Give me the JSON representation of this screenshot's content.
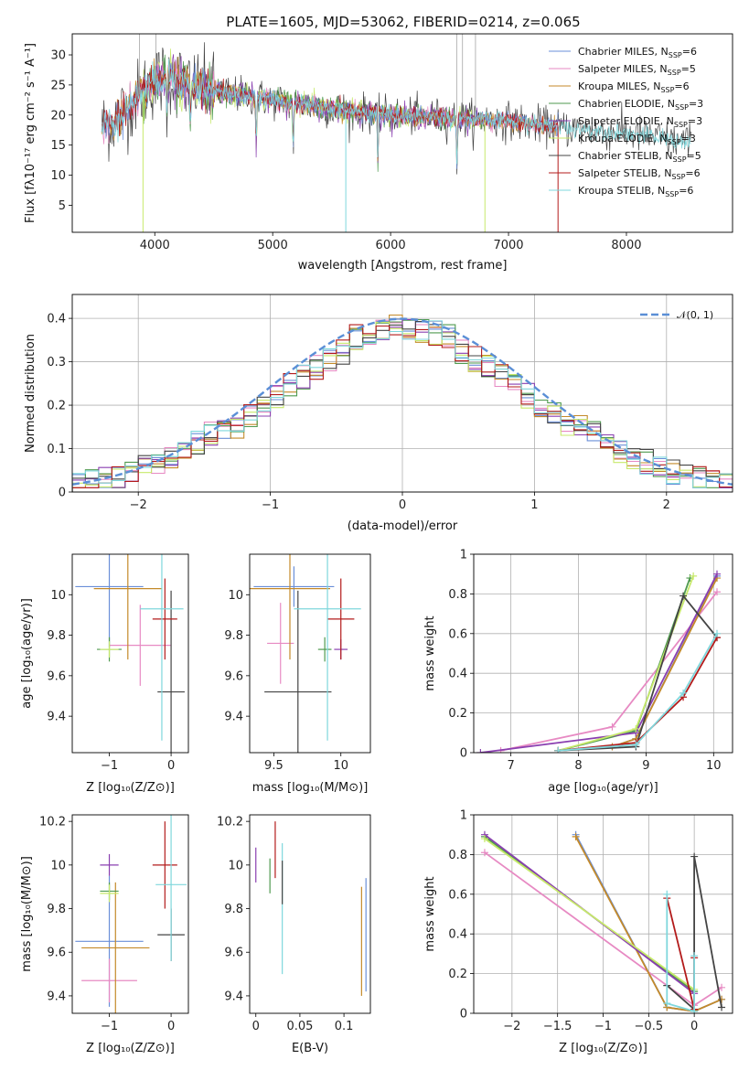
{
  "figure_title": "PLATE=1605, MJD=53062, FIBERID=0214, z=0.065",
  "colors": {
    "Chabrier MILES": "#6a8fd8",
    "Salpeter MILES": "#e78ac3",
    "Kroupa MILES": "#c48a2a",
    "Chabrier ELODIE": "#4f9a4f",
    "Salpeter ELODIE": "#8a3fb0",
    "Kroupa ELODIE": "#c7e96b",
    "Chabrier STELIB": "#444444",
    "Salpeter STELIB": "#b31b1b",
    "Kroupa STELIB": "#7fd7dc",
    "gaussian": "#5b8fd6",
    "orange": "#e8782a"
  },
  "chart_data": [
    {
      "id": "spectrum",
      "type": "line",
      "title": "PLATE=1605, MJD=53062, FIBERID=0214, z=0.065",
      "xlabel": "wavelength [Angstrom, rest frame]",
      "ylabel": "Flux [fλ10⁻¹⁷ erg cm⁻² s⁻¹ A⁻¹]",
      "xlim": [
        3300,
        8900
      ],
      "ylim": [
        0.5,
        33.5
      ],
      "xticks": [
        4000,
        5000,
        6000,
        7000,
        8000
      ],
      "yticks": [
        5,
        10,
        15,
        20,
        25,
        30
      ],
      "legend_position": "top-right",
      "legend": [
        "Chabrier MILES, N_SSP=6",
        "Salpeter MILES, N_SSP=5",
        "Kroupa MILES, N_SSP=6",
        "Chabrier ELODIE, N_SSP=3",
        "Salpeter ELODIE, N_SSP=3",
        "Kroupa ELODIE, N_SSP=3",
        "Chabrier STELIB, N_SSP=5",
        "Salpeter STELIB, N_SSP=6",
        "Kroupa STELIB, N_SSP=6"
      ],
      "continuum": [
        [
          3550,
          18
        ],
        [
          3650,
          19
        ],
        [
          3800,
          22
        ],
        [
          3950,
          25
        ],
        [
          4100,
          26.5
        ],
        [
          4300,
          25
        ],
        [
          4500,
          24
        ],
        [
          5000,
          22.5
        ],
        [
          5500,
          21
        ],
        [
          6000,
          20
        ],
        [
          6500,
          19.5
        ],
        [
          7000,
          19
        ],
        [
          7400,
          18
        ],
        [
          8000,
          17
        ],
        [
          8500,
          15.5
        ]
      ],
      "absorption_lines": [
        [
          3934,
          9
        ],
        [
          3968,
          9
        ],
        [
          4102,
          14
        ],
        [
          4304,
          16
        ],
        [
          4861,
          16
        ],
        [
          5175,
          16
        ],
        [
          5892,
          17
        ],
        [
          6563,
          16
        ]
      ]
    },
    {
      "id": "residuals",
      "type": "bar",
      "xlabel": "(data-model)/error",
      "ylabel": "Normed distribution",
      "xlim": [
        -2.5,
        2.5
      ],
      "ylim": [
        0,
        0.455
      ],
      "xticks": [
        -2,
        -1,
        0,
        1,
        2
      ],
      "yticks": [
        0.0,
        0.1,
        0.2,
        0.3,
        0.4
      ],
      "legend": [
        "𝒩(0, 1)"
      ],
      "legend_position": "top-right",
      "bin_width": 0.1,
      "grid": true
    },
    {
      "id": "age_vs_Z",
      "type": "scatter",
      "xlabel": "Z [log₁₀(Z/Z⊙)]",
      "ylabel": "age  [log₁₀(age/yr)]",
      "xlim": [
        -1.6,
        0.28
      ],
      "ylim": [
        9.22,
        10.2
      ],
      "xticks": [
        -1,
        0
      ],
      "yticks": [
        9.4,
        9.6,
        9.8,
        10.0
      ],
      "points": [
        {
          "model": "Chabrier MILES",
          "x": -1.0,
          "xerr": 0.55,
          "y": 10.04,
          "yerr": 0.3
        },
        {
          "model": "Salpeter MILES",
          "x": -0.5,
          "xerr": 0.5,
          "y": 9.75,
          "yerr": 0.2
        },
        {
          "model": "Kroupa MILES",
          "x": -0.7,
          "xerr": 0.55,
          "y": 10.03,
          "yerr": 0.35
        },
        {
          "model": "Chabrier ELODIE",
          "x": -1.0,
          "xerr": 0.2,
          "y": 9.73,
          "yerr": 0.06
        },
        {
          "model": "Kroupa ELODIE",
          "x": -1.0,
          "xerr": 0.15,
          "y": 9.73,
          "yerr": 0.04
        },
        {
          "model": "Chabrier STELIB",
          "x": 0.0,
          "xerr": 0.22,
          "y": 9.52,
          "yerr": 0.5
        },
        {
          "model": "Salpeter STELIB",
          "x": -0.1,
          "xerr": 0.2,
          "y": 9.88,
          "yerr": 0.2
        },
        {
          "model": "Kroupa STELIB",
          "x": -0.15,
          "xerr": 0.35,
          "y": 9.93,
          "yerr": 0.65
        }
      ]
    },
    {
      "id": "age_vs_mass",
      "type": "scatter",
      "xlabel": "mass [log₁₀(M/M⊙)]",
      "ylabel": "",
      "xlim": [
        9.32,
        10.22
      ],
      "ylim": [
        9.22,
        10.2
      ],
      "xticks": [
        9.5,
        10.0
      ],
      "yticks": [
        9.4,
        9.6,
        9.8,
        10.0
      ],
      "points": [
        {
          "model": "Chabrier MILES",
          "x": 9.65,
          "xerr": 0.3,
          "y": 10.04,
          "yerr": 0.1
        },
        {
          "model": "Salpeter MILES",
          "x": 9.55,
          "xerr": 0.1,
          "y": 9.76,
          "yerr": 0.2
        },
        {
          "model": "Kroupa MILES",
          "x": 9.62,
          "xerr": 0.3,
          "y": 10.03,
          "yerr": 0.35
        },
        {
          "model": "Chabrier ELODIE",
          "x": 9.88,
          "xerr": 0.05,
          "y": 9.73,
          "yerr": 0.06
        },
        {
          "model": "Salpeter ELODIE",
          "x": 10.0,
          "xerr": 0.05,
          "y": 9.73,
          "yerr": 0.05
        },
        {
          "model": "Chabrier STELIB",
          "x": 9.68,
          "xerr": 0.25,
          "y": 9.52,
          "yerr": 0.5
        },
        {
          "model": "Salpeter STELIB",
          "x": 10.0,
          "xerr": 0.1,
          "y": 9.88,
          "yerr": 0.2
        },
        {
          "model": "Kroupa STELIB",
          "x": 9.9,
          "xerr": 0.25,
          "y": 9.93,
          "yerr": 0.65
        }
      ]
    },
    {
      "id": "massweight_vs_age",
      "type": "line",
      "xlabel": "age  [log₁₀(age/yr)]",
      "ylabel": "mass weight",
      "xlim": [
        6.45,
        10.28
      ],
      "ylim": [
        0.0,
        1.0
      ],
      "xticks": [
        7,
        8,
        9,
        10
      ],
      "yticks": [
        0.0,
        0.2,
        0.4,
        0.6,
        0.8,
        1.0
      ],
      "grid": true,
      "series": [
        {
          "model": "Chabrier MILES",
          "x": [
            7.7,
            8.5,
            8.85,
            10.05
          ],
          "y": [
            0.01,
            0.03,
            0.07,
            0.89
          ]
        },
        {
          "model": "Salpeter MILES",
          "x": [
            6.85,
            8.5,
            10.05
          ],
          "y": [
            0.01,
            0.13,
            0.81
          ]
        },
        {
          "model": "Kroupa MILES",
          "x": [
            7.7,
            8.5,
            8.85,
            10.05
          ],
          "y": [
            0.01,
            0.03,
            0.07,
            0.88
          ]
        },
        {
          "model": "Chabrier ELODIE",
          "x": [
            7.7,
            8.85,
            9.65
          ],
          "y": [
            0.01,
            0.11,
            0.88
          ]
        },
        {
          "model": "Salpeter ELODIE",
          "x": [
            6.55,
            8.85,
            10.05
          ],
          "y": [
            0.0,
            0.1,
            0.9
          ]
        },
        {
          "model": "Kroupa ELODIE",
          "x": [
            7.7,
            8.85,
            9.7
          ],
          "y": [
            0.01,
            0.12,
            0.89
          ]
        },
        {
          "model": "Chabrier STELIB",
          "x": [
            7.7,
            8.85,
            9.55,
            10.05
          ],
          "y": [
            0.01,
            0.03,
            0.79,
            0.58
          ]
        },
        {
          "model": "Salpeter STELIB",
          "x": [
            7.7,
            8.85,
            9.55,
            10.05
          ],
          "y": [
            0.01,
            0.05,
            0.28,
            0.58
          ]
        },
        {
          "model": "Kroupa STELIB",
          "x": [
            7.7,
            8.85,
            9.55,
            10.05
          ],
          "y": [
            0.01,
            0.04,
            0.3,
            0.6
          ]
        }
      ]
    },
    {
      "id": "mass_vs_Z",
      "type": "scatter",
      "xlabel": "Z [log₁₀(Z/Z⊙)]",
      "ylabel": "mass [log₁₀(M/M⊙)]",
      "xlim": [
        -1.6,
        0.28
      ],
      "ylim": [
        9.32,
        10.23
      ],
      "xticks": [
        -1,
        0
      ],
      "yticks": [
        9.4,
        9.6,
        9.8,
        10.0,
        10.2
      ],
      "points": [
        {
          "model": "Chabrier MILES",
          "x": -1.0,
          "xerr": 0.55,
          "y": 9.65,
          "yerr": 0.3
        },
        {
          "model": "Salpeter MILES",
          "x": -1.0,
          "xerr": 0.45,
          "y": 9.47,
          "yerr": 0.1
        },
        {
          "model": "Kroupa MILES",
          "x": -0.9,
          "xerr": 0.55,
          "y": 9.62,
          "yerr": 0.3
        },
        {
          "model": "Chabrier ELODIE",
          "x": -1.0,
          "xerr": 0.15,
          "y": 9.88,
          "yerr": 0.04
        },
        {
          "model": "Salpeter ELODIE",
          "x": -1.0,
          "xerr": 0.15,
          "y": 10.0,
          "yerr": 0.05
        },
        {
          "model": "Kroupa ELODIE",
          "x": -1.0,
          "xerr": 0.15,
          "y": 9.87,
          "yerr": 0.04
        },
        {
          "model": "Chabrier STELIB",
          "x": 0.0,
          "xerr": 0.22,
          "y": 9.68,
          "yerr": 0.12
        },
        {
          "model": "Salpeter STELIB",
          "x": -0.1,
          "xerr": 0.2,
          "y": 10.0,
          "yerr": 0.2
        },
        {
          "model": "Kroupa STELIB",
          "x": 0.0,
          "xerr": 0.25,
          "y": 9.91,
          "yerr": 0.35
        }
      ]
    },
    {
      "id": "mass_vs_ebv",
      "type": "scatter",
      "xlabel": "E(B-V)",
      "ylabel": "",
      "xlim": [
        -0.007,
        0.13
      ],
      "ylim": [
        9.32,
        10.23
      ],
      "xticks": [
        0.0,
        0.05,
        0.1
      ],
      "yticks": [
        9.4,
        9.6,
        9.8,
        10.0,
        10.2
      ],
      "points": [
        {
          "model": "Salpeter ELODIE",
          "x": 0.0,
          "y": 10.0,
          "yerr": 0.08
        },
        {
          "model": "Salpeter STELIB",
          "x": 0.022,
          "y": 10.07,
          "yerr": 0.13
        },
        {
          "model": "Chabrier ELODIE",
          "x": 0.016,
          "y": 9.95,
          "yerr": 0.08
        },
        {
          "model": "Kroupa STELIB",
          "x": 0.03,
          "y": 9.8,
          "yerr": 0.3
        },
        {
          "model": "Chabrier STELIB",
          "x": 0.03,
          "y": 9.92,
          "yerr": 0.1
        },
        {
          "model": "Kroupa MILES",
          "x": 0.12,
          "y": 9.65,
          "yerr": 0.25
        },
        {
          "model": "Chabrier MILES",
          "x": 0.125,
          "y": 9.68,
          "yerr": 0.26
        }
      ]
    },
    {
      "id": "massweight_vs_Z",
      "type": "line",
      "xlabel": "Z [log₁₀(Z/Z⊙)]",
      "ylabel": "mass weight",
      "xlim": [
        -2.42,
        0.42
      ],
      "ylim": [
        0.0,
        1.0
      ],
      "xticks": [
        -2.0,
        -1.5,
        -1.0,
        -0.5,
        0.0
      ],
      "yticks": [
        0.0,
        0.2,
        0.4,
        0.6,
        0.8,
        1.0
      ],
      "grid": true,
      "series": [
        {
          "model": "Chabrier MILES",
          "x": [
            -1.3,
            -0.3,
            0.0,
            0.3
          ],
          "y": [
            0.9,
            0.03,
            0.01,
            0.07
          ]
        },
        {
          "model": "Salpeter MILES",
          "x": [
            -2.3,
            0.0,
            0.3
          ],
          "y": [
            0.81,
            0.04,
            0.13
          ]
        },
        {
          "model": "Kroupa MILES",
          "x": [
            -1.3,
            -0.3,
            0.0,
            0.3
          ],
          "y": [
            0.89,
            0.03,
            0.01,
            0.07
          ]
        },
        {
          "model": "Chabrier ELODIE",
          "x": [
            -2.3,
            0.0
          ],
          "y": [
            0.89,
            0.11
          ]
        },
        {
          "model": "Salpeter ELODIE",
          "x": [
            -2.3,
            0.0
          ],
          "y": [
            0.9,
            0.1
          ]
        },
        {
          "model": "Kroupa ELODIE",
          "x": [
            -2.3,
            0.0
          ],
          "y": [
            0.88,
            0.12
          ]
        },
        {
          "model": "Chabrier STELIB",
          "x": [
            -0.3,
            0.0,
            0.0,
            0.3
          ],
          "y": [
            0.14,
            0.02,
            0.79,
            0.03
          ]
        },
        {
          "model": "Salpeter STELIB",
          "x": [
            -0.3,
            0.0,
            0.0
          ],
          "y": [
            0.58,
            0.02,
            0.28
          ]
        },
        {
          "model": "Kroupa STELIB",
          "x": [
            -0.3,
            -0.3,
            0.0,
            0.0
          ],
          "y": [
            0.6,
            0.05,
            0.01,
            0.29
          ]
        }
      ]
    }
  ]
}
